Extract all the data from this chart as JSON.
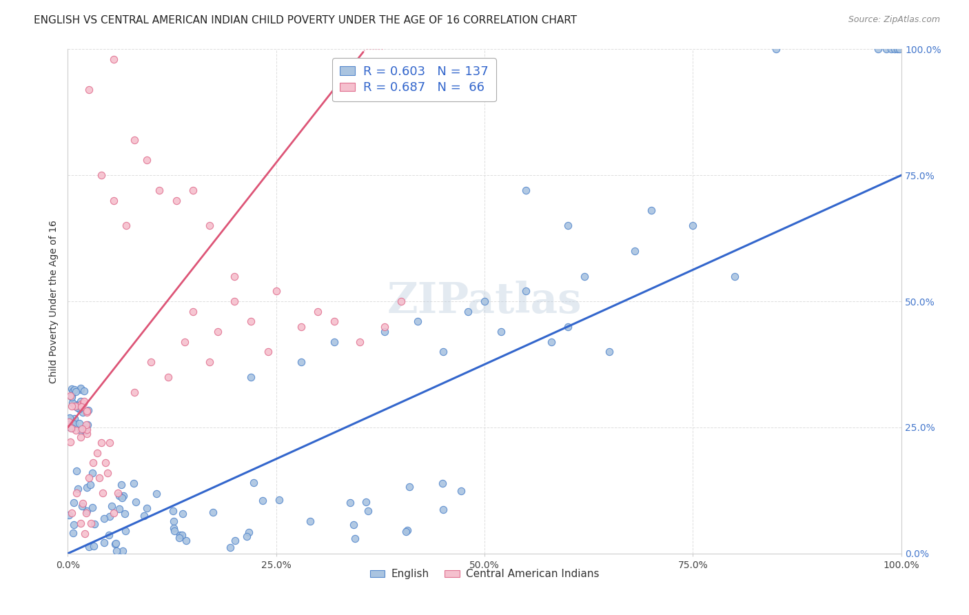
{
  "title": "ENGLISH VS CENTRAL AMERICAN INDIAN CHILD POVERTY UNDER THE AGE OF 16 CORRELATION CHART",
  "source": "Source: ZipAtlas.com",
  "ylabel": "Child Poverty Under the Age of 16",
  "xlim": [
    0.0,
    1.0
  ],
  "ylim": [
    0.0,
    1.0
  ],
  "xticks": [
    0.0,
    0.25,
    0.5,
    0.75,
    1.0
  ],
  "yticks": [
    0.0,
    0.25,
    0.5,
    0.75,
    1.0
  ],
  "xtick_labels": [
    "0.0%",
    "25.0%",
    "50.0%",
    "75.0%",
    "100.0%"
  ],
  "ytick_labels": [
    "0.0%",
    "25.0%",
    "50.0%",
    "75.0%",
    "100.0%"
  ],
  "english_color": "#aac4e0",
  "english_edge_color": "#5588cc",
  "pink_color": "#f5c0ce",
  "pink_edge_color": "#e07090",
  "english_R": 0.603,
  "english_N": 137,
  "pink_R": 0.687,
  "pink_N": 66,
  "blue_line_color": "#3366cc",
  "pink_line_color": "#dd5577",
  "watermark_text": "ZIPatlas",
  "legend_label_english": "English",
  "legend_label_pink": "Central American Indians",
  "marker_size": 55,
  "background_color": "#ffffff",
  "grid_color": "#dddddd",
  "title_fontsize": 11,
  "axis_fontsize": 10,
  "tick_fontsize": 10,
  "legend_fontsize": 13
}
